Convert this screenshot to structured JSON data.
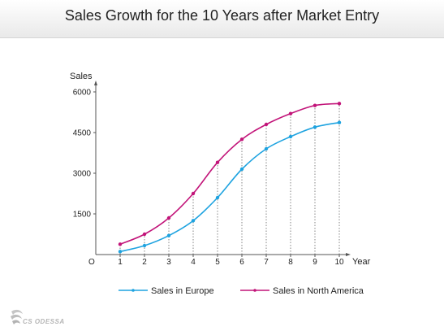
{
  "header": {
    "title": "Sales Growth for the 10 Years after Market Entry"
  },
  "branding": {
    "logo_text": "CS ODESSA"
  },
  "chart_data": {
    "type": "line",
    "title": "Sales Growth for the 10 Years after Market Entry",
    "xlabel": "Year",
    "ylabel": "Sales",
    "origin_label": "O",
    "x": [
      1,
      2,
      3,
      4,
      5,
      6,
      7,
      8,
      9,
      10
    ],
    "x_ticks": [
      "1",
      "2",
      "3",
      "4",
      "5",
      "6",
      "7",
      "8",
      "9",
      "10"
    ],
    "y_ticks": [
      "1500",
      "3000",
      "4500",
      "6000"
    ],
    "ylim": [
      0,
      6000
    ],
    "xlim": [
      0,
      10
    ],
    "grid": "vertical dashed drop lines",
    "legend": "bottom",
    "series": [
      {
        "name": "Sales in Europe",
        "color": "#1ea3e0",
        "values": [
          110,
          330,
          700,
          1250,
          2100,
          3150,
          3900,
          4350,
          4700,
          4870
        ]
      },
      {
        "name": "Sales in North America",
        "color": "#c21479",
        "values": [
          380,
          750,
          1350,
          2250,
          3400,
          4250,
          4800,
          5200,
          5500,
          5570
        ]
      }
    ]
  }
}
